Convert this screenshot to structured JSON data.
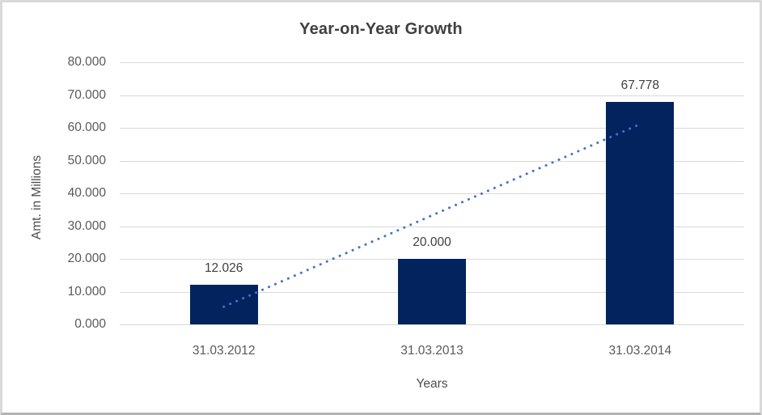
{
  "frame": {
    "background": "#ffffff",
    "border_color": "#d9d9d9",
    "bottom_border_color": "#b3b3b3"
  },
  "chart_data": {
    "type": "bar",
    "title": "Year-on-Year Growth",
    "categories": [
      "31.03.2012",
      "31.03.2013",
      "31.03.2014"
    ],
    "values": [
      12.026,
      20.0,
      67.778
    ],
    "data_labels": [
      "12.026",
      "20.000",
      "67.778"
    ],
    "xlabel": "Years",
    "ylabel": "Amt. in Millions",
    "ylim": [
      0,
      80
    ],
    "ytick_step": 10,
    "ytick_labels": [
      "0.000",
      "10.000",
      "20.000",
      "30.000",
      "40.000",
      "50.000",
      "60.000",
      "70.000",
      "80.000"
    ],
    "grid": true,
    "legend_position": "none",
    "bar_color": "#02235e",
    "gridline_color": "#d9d9d9",
    "title_color": "#404040",
    "data_label_color": "#404040",
    "tick_label_color": "#595959",
    "trendline": {
      "type": "linear",
      "style": "dotted",
      "color": "#4472c4",
      "start_value": 5.39,
      "end_value": 61.14
    }
  }
}
